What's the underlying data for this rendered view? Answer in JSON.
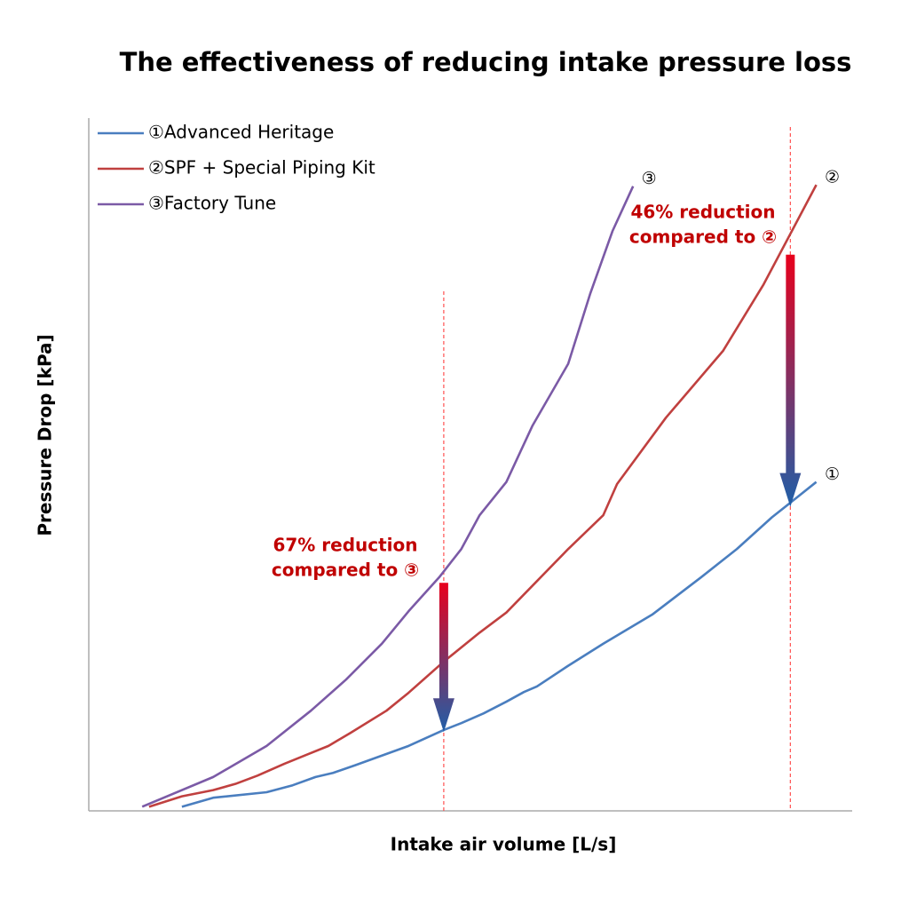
{
  "chart_data": {
    "type": "line",
    "title": "The effectiveness of reducing intake pressure loss",
    "xlabel": "Intake air volume [L/s]",
    "ylabel": "Pressure Drop [kPa]",
    "xlim": [
      0,
      100
    ],
    "ylim": [
      0,
      100
    ],
    "legend": "top-left",
    "series": [
      {
        "name": "①Advanced Heritage",
        "label": "①",
        "color": "#4a7ebf",
        "x": [
          12.2,
          16.3,
          23.3,
          26.7,
          29.7,
          32.0,
          34.9,
          41.9,
          46.5,
          48.8,
          51.7,
          54.7,
          57.0,
          58.7,
          62.8,
          67.4,
          73.8,
          80.2,
          84.9,
          89.5,
          91.9,
          95.3
        ],
        "values": [
          0.6,
          1.9,
          2.7,
          3.7,
          4.9,
          5.5,
          6.6,
          9.4,
          11.7,
          12.7,
          14.1,
          15.8,
          17.2,
          18.0,
          21.0,
          24.2,
          28.4,
          33.8,
          37.9,
          42.5,
          44.6,
          47.6
        ]
      },
      {
        "name": "②SPF + Special Piping Kit",
        "label": "②",
        "color": "#c0403f",
        "x": [
          7.9,
          12.2,
          16.3,
          19.2,
          22.1,
          25.6,
          28.5,
          31.4,
          34.3,
          39.0,
          41.9,
          46.5,
          51.2,
          54.7,
          62.8,
          67.4,
          69.2,
          75.6,
          83.1,
          88.4,
          95.3
        ],
        "values": [
          0.6,
          2.1,
          3.0,
          3.9,
          5.1,
          6.8,
          8.1,
          9.4,
          11.3,
          14.5,
          17.1,
          21.6,
          25.8,
          28.7,
          37.9,
          42.8,
          47.3,
          56.9,
          66.6,
          76.2,
          90.6
        ]
      },
      {
        "name": "③Factory Tune",
        "label": "③",
        "color": "#7b5aa6",
        "x": [
          7.0,
          16.3,
          23.3,
          29.1,
          33.7,
          38.4,
          41.9,
          45.9,
          48.8,
          51.2,
          54.7,
          58.1,
          62.8,
          65.7,
          68.6,
          71.3
        ],
        "values": [
          0.6,
          4.9,
          9.4,
          14.5,
          19.0,
          24.2,
          28.9,
          33.8,
          37.9,
          42.8,
          47.6,
          55.7,
          64.7,
          74.9,
          83.9,
          90.4
        ]
      }
    ],
    "annotations": [
      {
        "lines": [
          "67% reduction",
          "compared to ③"
        ],
        "x": 46.5,
        "from": 33.0,
        "to": 11.4,
        "color": "#c00000"
      },
      {
        "lines": [
          "46% reduction",
          "compared to ②"
        ],
        "x": 91.9,
        "from": 80.5,
        "to": 44.0,
        "color": "#c00000"
      }
    ]
  }
}
